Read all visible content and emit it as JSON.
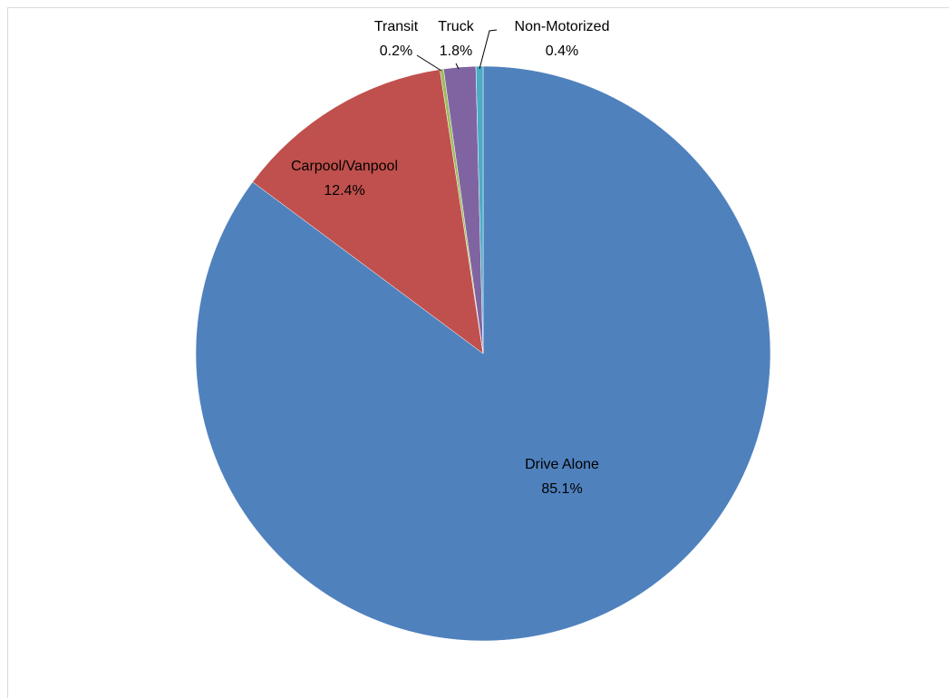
{
  "chart_data": {
    "type": "pie",
    "categories": [
      "Drive Alone",
      "Carpool/Vanpool",
      "Transit",
      "Truck",
      "Non-Motorized"
    ],
    "values": [
      85.1,
      12.4,
      0.2,
      1.8,
      0.4
    ],
    "value_labels": [
      "85.1%",
      "12.4%",
      "0.2%",
      "1.8%",
      "0.4%"
    ],
    "colors": [
      "#4f81bd",
      "#c0504d",
      "#9bbb59",
      "#8064a2",
      "#4bacc6"
    ]
  }
}
